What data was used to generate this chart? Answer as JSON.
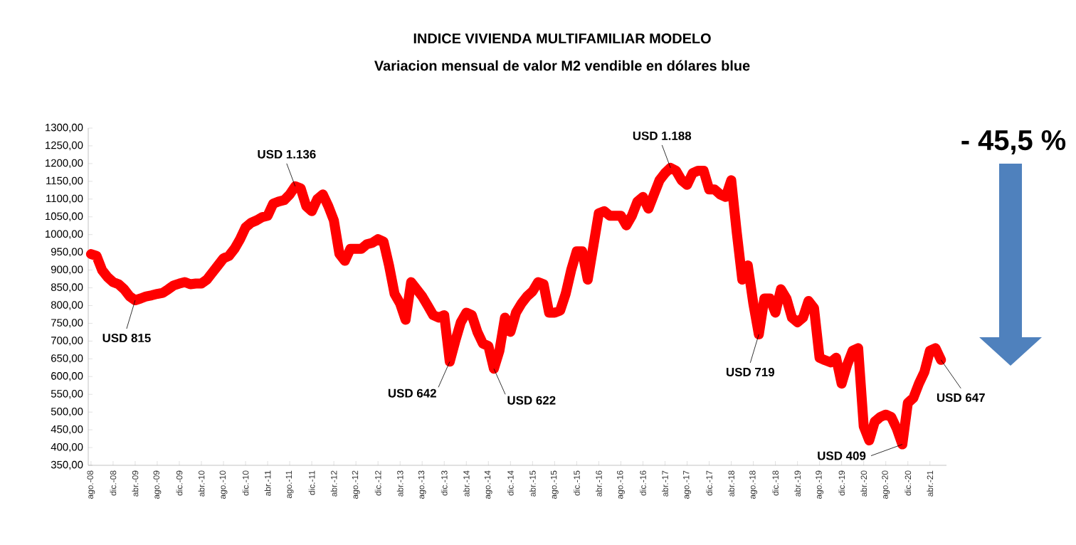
{
  "chart_data": {
    "type": "line",
    "title": "INDICE VIVIENDA MULTIFAMILIAR MODELO",
    "subtitle": "Variacion mensual de valor M2 vendible en dólares blue",
    "color": "#ff0000",
    "categories": [
      "ago.-08",
      null,
      null,
      null,
      "dic.-08",
      null,
      null,
      null,
      "abr.-09",
      null,
      null,
      null,
      "ago.-09",
      null,
      null,
      null,
      "dic.-09",
      null,
      null,
      null,
      "abr.-10",
      null,
      null,
      null,
      "ago.-10",
      null,
      null,
      null,
      "dic.-10",
      null,
      null,
      null,
      "abr.-11",
      null,
      null,
      null,
      "ago.-11",
      null,
      null,
      null,
      "dic.-11",
      null,
      null,
      null,
      "abr.-12",
      null,
      null,
      null,
      "ago.-12",
      null,
      null,
      null,
      "dic.-12",
      null,
      null,
      null,
      "abr.-13",
      null,
      null,
      null,
      "ago.-13",
      null,
      null,
      null,
      "dic.-13",
      null,
      null,
      null,
      "abr.-14",
      null,
      null,
      null,
      "ago.-14",
      null,
      null,
      null,
      "dic.-14",
      null,
      null,
      null,
      "abr.-15",
      null,
      null,
      null,
      "ago.-15",
      null,
      null,
      null,
      "dic.-15",
      null,
      null,
      null,
      "abr.-16",
      null,
      null,
      null,
      "ago.-16",
      null,
      null,
      null,
      "dic.-16",
      null,
      null,
      null,
      "abr.-17",
      null,
      null,
      null,
      "ago.-17",
      null,
      null,
      null,
      "dic.-17",
      null,
      null,
      null,
      "abr.-18",
      null,
      null,
      null,
      "ago.-18",
      null,
      null,
      null,
      "dic.-18",
      null,
      null,
      null,
      "abr.-19",
      null,
      null,
      null,
      "ago.-19",
      null,
      null,
      null,
      "dic.-19",
      null,
      null,
      null,
      "abr.-20",
      null,
      null,
      null,
      "ago.-20",
      null,
      null,
      null,
      "dic.-20",
      null,
      null,
      null,
      "abr.-21",
      null,
      null
    ],
    "values": [
      945,
      940,
      900,
      880,
      866,
      860,
      846,
      826,
      815,
      820,
      826,
      829,
      833,
      836,
      846,
      857,
      862,
      866,
      860,
      862,
      862,
      873,
      893,
      913,
      933,
      940,
      960,
      987,
      1020,
      1033,
      1040,
      1049,
      1053,
      1087,
      1093,
      1097,
      1113,
      1136,
      1130,
      1080,
      1066,
      1100,
      1113,
      1080,
      1040,
      946,
      926,
      960,
      960,
      960,
      973,
      977,
      987,
      980,
      913,
      833,
      806,
      760,
      866,
      846,
      826,
      800,
      773,
      766,
      773,
      642,
      700,
      753,
      780,
      773,
      726,
      693,
      686,
      622,
      673,
      766,
      726,
      780,
      806,
      826,
      840,
      866,
      860,
      780,
      780,
      786,
      833,
      900,
      953,
      953,
      873,
      966,
      1060,
      1066,
      1053,
      1053,
      1053,
      1026,
      1053,
      1093,
      1106,
      1073,
      1113,
      1153,
      1173,
      1188,
      1180,
      1153,
      1140,
      1173,
      1180,
      1180,
      1127,
      1127,
      1113,
      1106,
      1153,
      1006,
      873,
      913,
      806,
      719,
      820,
      820,
      780,
      846,
      820,
      766,
      753,
      766,
      813,
      793,
      653,
      646,
      640,
      653,
      580,
      633,
      673,
      680,
      460,
      420,
      473,
      486,
      493,
      486,
      453,
      409,
      526,
      540,
      580,
      613,
      673,
      680,
      647
    ],
    "value_labels": [
      null,
      null,
      null,
      null,
      null,
      null,
      null,
      null,
      "USD 815",
      null,
      null,
      null,
      null,
      null,
      null,
      null,
      null,
      null,
      null,
      null,
      null,
      null,
      null,
      null,
      null,
      null,
      null,
      null,
      null,
      null,
      null,
      null,
      null,
      null,
      null,
      null,
      null,
      "USD 1.136",
      null,
      null,
      null,
      null,
      null,
      null,
      null,
      null,
      null,
      null,
      null,
      null,
      null,
      null,
      null,
      null,
      null,
      null,
      null,
      null,
      null,
      null,
      null,
      null,
      null,
      null,
      null,
      "USD 642",
      null,
      null,
      null,
      null,
      null,
      null,
      null,
      "USD 622",
      null,
      null,
      null,
      null,
      null,
      null,
      null,
      null,
      null,
      null,
      null,
      null,
      null,
      null,
      null,
      null,
      null,
      null,
      null,
      null,
      null,
      null,
      null,
      null,
      null,
      null,
      null,
      null,
      null,
      null,
      null,
      "USD 1.188",
      null,
      null,
      null,
      null,
      null,
      null,
      null,
      null,
      null,
      null,
      null,
      null,
      null,
      null,
      null,
      "USD 719",
      null,
      null,
      null,
      null,
      null,
      null,
      null,
      null,
      null,
      null,
      null,
      null,
      null,
      null,
      null,
      null,
      null,
      null,
      null,
      null,
      null,
      null,
      null,
      null,
      null,
      "USD 409",
      null,
      null,
      null,
      null,
      null,
      null,
      "USD 647"
    ],
    "ylim": [
      350,
      1300
    ],
    "yticks": [
      {
        "value": 350,
        "label": "350,00"
      },
      {
        "value": 400,
        "label": "400,00"
      },
      {
        "value": 450,
        "label": "450,00"
      },
      {
        "value": 500,
        "label": "500,00"
      },
      {
        "value": 550,
        "label": "550,00"
      },
      {
        "value": 600,
        "label": "600,00"
      },
      {
        "value": 650,
        "label": "650,00"
      },
      {
        "value": 700,
        "label": "700,00"
      },
      {
        "value": 750,
        "label": "750,00"
      },
      {
        "value": 800,
        "label": "800,00"
      },
      {
        "value": 850,
        "label": "850,00"
      },
      {
        "value": 900,
        "label": "900,00"
      },
      {
        "value": 950,
        "label": "950,00"
      },
      {
        "value": 1000,
        "label": "1000,00"
      },
      {
        "value": 1050,
        "label": "1050,00"
      },
      {
        "value": 1100,
        "label": "1100,00"
      },
      {
        "value": 1150,
        "label": "1150,00"
      },
      {
        "value": 1200,
        "label": "1200,00"
      },
      {
        "value": 1250,
        "label": "1250,00"
      },
      {
        "value": 1300,
        "label": "1300,00"
      }
    ],
    "annotations": [
      "- 45,5 %"
    ]
  }
}
